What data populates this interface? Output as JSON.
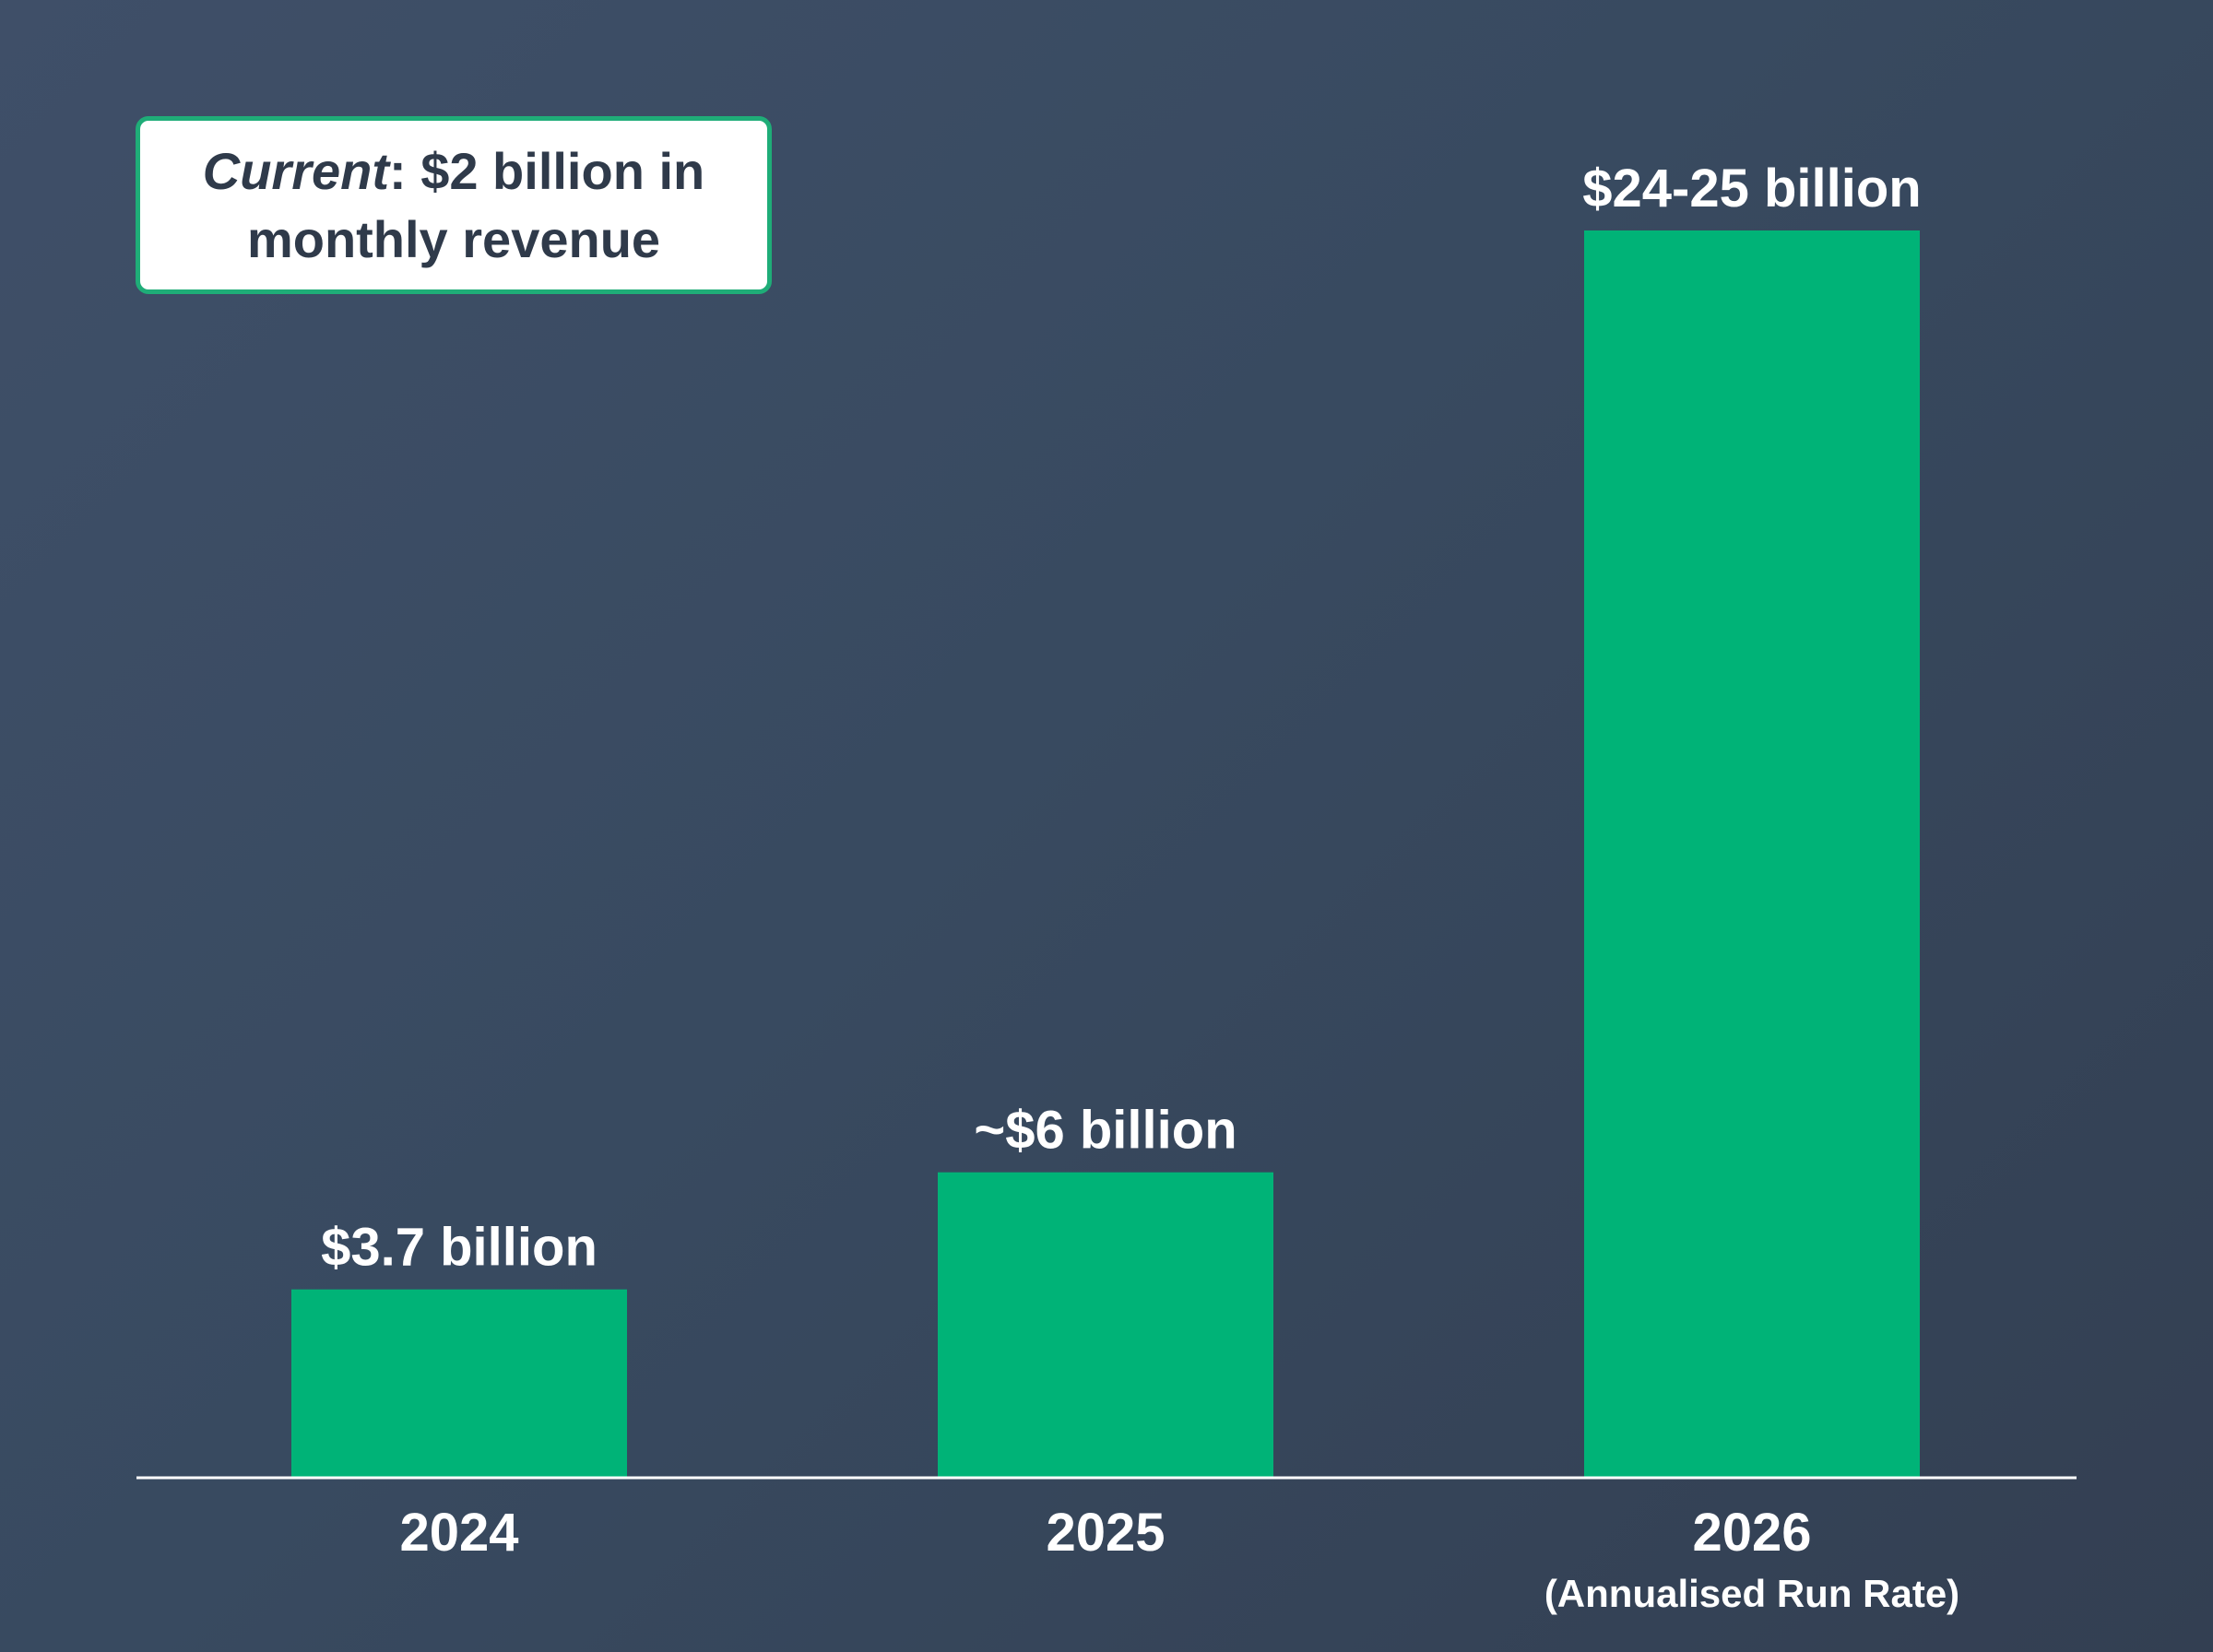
{
  "callout": {
    "lead": "Current",
    "separator": ":",
    "text": " $2 billion in monthly revenue"
  },
  "colors": {
    "background": "#3a4a60",
    "bar": "#00b377",
    "axis": "#ffffff",
    "text": "#ffffff",
    "callout_border": "#1fad78",
    "callout_text": "#2f3a4a"
  },
  "chart_data": {
    "type": "bar",
    "categories": [
      "2024",
      "2025",
      "2026"
    ],
    "category_sublabels": [
      "",
      "",
      "(Annualised Run Rate)"
    ],
    "values": [
      3.7,
      6,
      24.5
    ],
    "data_labels": [
      "$3.7 billion",
      "~$6 billion",
      "$24-25 billion"
    ],
    "title": "",
    "xlabel": "",
    "ylabel": "",
    "unit": "billion USD",
    "ylim": [
      0,
      24.5
    ],
    "grid": false,
    "legend": "none"
  }
}
